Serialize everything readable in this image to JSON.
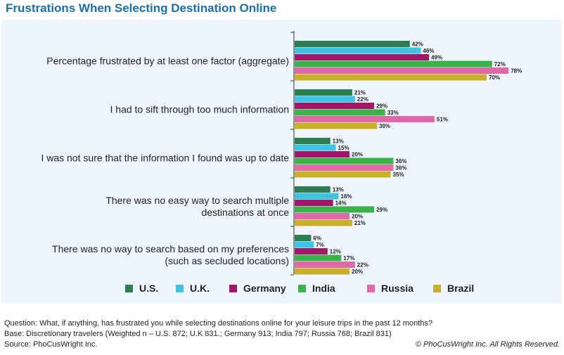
{
  "title": "Frustrations When Selecting Destination Online",
  "chart_data": {
    "type": "bar",
    "orientation": "horizontal",
    "categories": [
      [
        "Percentage frustrated by at least one factor (aggregate)"
      ],
      [
        "I had to sift through too much information"
      ],
      [
        "I was not sure that the information I found was up to date"
      ],
      [
        "There was no easy way to search multiple",
        "destinations at once"
      ],
      [
        "There was no way to search based on my preferences",
        "(such as secluded locations)"
      ]
    ],
    "series": [
      {
        "name": "U.S.",
        "color": "#2e7d52",
        "values": [
          42,
          21,
          13,
          13,
          6
        ],
        "labels": [
          "42%",
          "21%",
          "13%",
          "13%",
          "6%"
        ]
      },
      {
        "name": "U.K.",
        "color": "#3ec4e0",
        "values": [
          46,
          22,
          15,
          16,
          7
        ],
        "labels": [
          "46%",
          "22%",
          "15%",
          "16%",
          "7%"
        ]
      },
      {
        "name": "Germany",
        "color": "#a3176b",
        "values": [
          49,
          29,
          20,
          14,
          12
        ],
        "labels": [
          "49%",
          "29%",
          "20%",
          "14%",
          "12%"
        ]
      },
      {
        "name": "India",
        "color": "#3cb34a",
        "values": [
          72,
          33,
          36,
          29,
          17
        ],
        "labels": [
          "72%",
          "33%",
          "36%",
          "29%",
          "17%"
        ]
      },
      {
        "name": "Russia",
        "color": "#e06aa8",
        "values": [
          78,
          51,
          36,
          20,
          22
        ],
        "labels": [
          "78%",
          "51%",
          "36%",
          "20%",
          "22%"
        ]
      },
      {
        "name": "Brazil",
        "color": "#c9b02a",
        "values": [
          70,
          30,
          35,
          21,
          20
        ],
        "labels": [
          "70%",
          "30%",
          "35%",
          "21%",
          "20%"
        ]
      }
    ],
    "xlim": [
      0,
      100
    ],
    "legend": "bottom",
    "grid": false
  },
  "footer": {
    "question": "Question: What, if anything, has frustrated you while selecting destinations online for your leisure trips in the past 12 months?",
    "base": "Base: Discretionary travelers (Weighted n – U.S. 872; U.K 831.; Germany 913; India 797; Russia 768; Brazil 831)",
    "source": "Source: PhoCusWright Inc.",
    "copyright": "© PhoCusWright Inc. All Rights Reserved."
  }
}
